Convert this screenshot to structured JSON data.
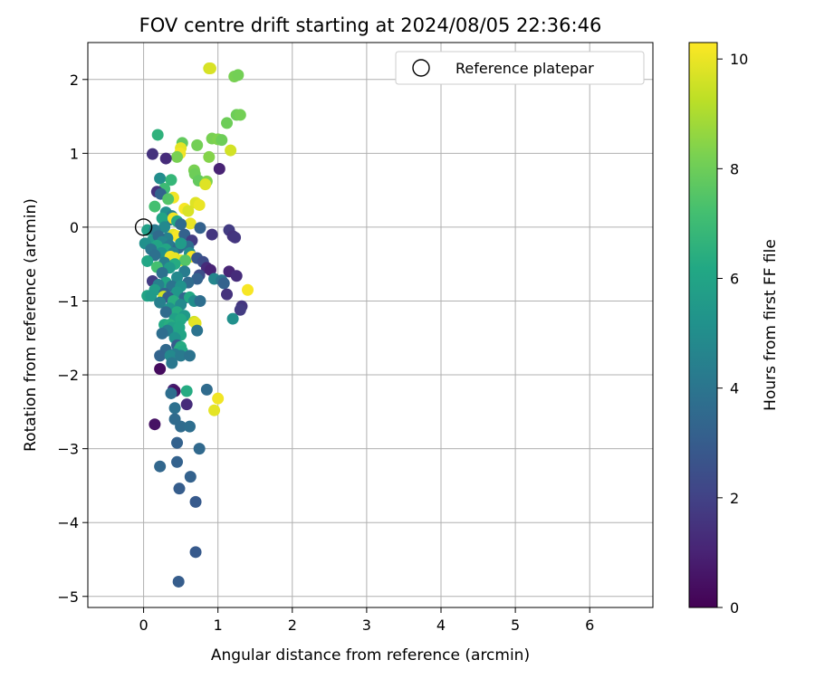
{
  "chart_data": {
    "type": "scatter",
    "title": "FOV centre drift starting at 2024/08/05 22:36:46",
    "xlabel": "Angular distance from reference (arcmin)",
    "ylabel": "Rotation from reference (arcmin)",
    "xlim": [
      -0.75,
      6.85
    ],
    "ylim": [
      -5.15,
      2.5
    ],
    "xticks": [
      0,
      1,
      2,
      3,
      4,
      5,
      6
    ],
    "yticks": [
      2,
      1,
      0,
      -1,
      -2,
      -3,
      -4,
      -5
    ],
    "grid": true,
    "legend": {
      "position": "top-right",
      "label": "Reference platepar"
    },
    "reference": {
      "x": 0,
      "y": 0
    },
    "colorbar": {
      "label": "Hours from first FF file",
      "colormap": "viridis",
      "range": [
        0,
        10.3
      ],
      "ticks": [
        0,
        2,
        4,
        6,
        8,
        10
      ]
    },
    "points": [
      {
        "x": 0.88,
        "y": 2.15,
        "c": 9.6
      },
      {
        "x": 0.9,
        "y": 2.15,
        "c": 9.7
      },
      {
        "x": 1.22,
        "y": 2.04,
        "c": 8.2
      },
      {
        "x": 1.27,
        "y": 2.06,
        "c": 8.1
      },
      {
        "x": 1.25,
        "y": 1.52,
        "c": 8.0
      },
      {
        "x": 1.3,
        "y": 1.52,
        "c": 8.1
      },
      {
        "x": 1.12,
        "y": 1.41,
        "c": 8.0
      },
      {
        "x": 0.19,
        "y": 1.25,
        "c": 6.6
      },
      {
        "x": 0.92,
        "y": 1.2,
        "c": 8.2
      },
      {
        "x": 1.0,
        "y": 1.19,
        "c": 8.3
      },
      {
        "x": 1.05,
        "y": 1.18,
        "c": 8.0
      },
      {
        "x": 0.52,
        "y": 1.14,
        "c": 7.8
      },
      {
        "x": 0.72,
        "y": 1.11,
        "c": 8.1
      },
      {
        "x": 0.5,
        "y": 1.07,
        "c": 9.9
      },
      {
        "x": 1.17,
        "y": 1.04,
        "c": 9.6
      },
      {
        "x": 0.12,
        "y": 0.99,
        "c": 1.5
      },
      {
        "x": 0.49,
        "y": 1.0,
        "c": 10.1
      },
      {
        "x": 0.45,
        "y": 0.95,
        "c": 8.2
      },
      {
        "x": 0.88,
        "y": 0.95,
        "c": 8.4
      },
      {
        "x": 0.3,
        "y": 0.93,
        "c": 1.3
      },
      {
        "x": 1.02,
        "y": 0.79,
        "c": 1.0
      },
      {
        "x": 0.68,
        "y": 0.77,
        "c": 8.2
      },
      {
        "x": 0.69,
        "y": 0.72,
        "c": 8.0
      },
      {
        "x": 0.22,
        "y": 0.66,
        "c": 5.0
      },
      {
        "x": 0.37,
        "y": 0.64,
        "c": 6.8
      },
      {
        "x": 0.74,
        "y": 0.63,
        "c": 7.8
      },
      {
        "x": 0.85,
        "y": 0.62,
        "c": 8.3
      },
      {
        "x": 0.83,
        "y": 0.58,
        "c": 9.8
      },
      {
        "x": 0.28,
        "y": 0.52,
        "c": 7.0
      },
      {
        "x": 0.18,
        "y": 0.48,
        "c": 1.5
      },
      {
        "x": 0.23,
        "y": 0.45,
        "c": 3.3
      },
      {
        "x": 0.4,
        "y": 0.4,
        "c": 10.1
      },
      {
        "x": 0.33,
        "y": 0.38,
        "c": 7.5
      },
      {
        "x": 0.7,
        "y": 0.33,
        "c": 9.8
      },
      {
        "x": 0.75,
        "y": 0.3,
        "c": 10.0
      },
      {
        "x": 0.15,
        "y": 0.28,
        "c": 7.2
      },
      {
        "x": 0.55,
        "y": 0.25,
        "c": 10.2
      },
      {
        "x": 0.6,
        "y": 0.22,
        "c": 9.7
      },
      {
        "x": 0.3,
        "y": 0.2,
        "c": 5.1
      },
      {
        "x": 0.38,
        "y": 0.15,
        "c": 4.5
      },
      {
        "x": 0.35,
        "y": 0.1,
        "c": 3.9
      },
      {
        "x": 0.25,
        "y": 0.12,
        "c": 6.0
      },
      {
        "x": 0.4,
        "y": 0.12,
        "c": 10.1
      },
      {
        "x": 0.45,
        "y": 0.08,
        "c": 6.2
      },
      {
        "x": 0.63,
        "y": 0.05,
        "c": 10.0
      },
      {
        "x": 0.5,
        "y": 0.04,
        "c": 3.6
      },
      {
        "x": 0.28,
        "y": 0.0,
        "c": 4.8
      },
      {
        "x": 0.76,
        "y": -0.01,
        "c": 3.2
      },
      {
        "x": 0.05,
        "y": -0.04,
        "c": 5.8
      },
      {
        "x": 0.15,
        "y": -0.04,
        "c": 4.2
      },
      {
        "x": 1.15,
        "y": -0.04,
        "c": 1.8
      },
      {
        "x": 1.2,
        "y": -0.12,
        "c": 1.5
      },
      {
        "x": 1.23,
        "y": -0.14,
        "c": 1.6
      },
      {
        "x": 0.92,
        "y": -0.1,
        "c": 1.6
      },
      {
        "x": 0.4,
        "y": -0.1,
        "c": 9.9
      },
      {
        "x": 0.45,
        "y": -0.12,
        "c": 10.2
      },
      {
        "x": 0.55,
        "y": -0.1,
        "c": 3.2
      },
      {
        "x": 0.32,
        "y": -0.15,
        "c": 4.5
      },
      {
        "x": 0.12,
        "y": -0.18,
        "c": 5.5
      },
      {
        "x": 0.2,
        "y": -0.12,
        "c": 3.6
      },
      {
        "x": 0.25,
        "y": -0.2,
        "c": 4.7
      },
      {
        "x": 0.65,
        "y": -0.18,
        "c": 1.8
      },
      {
        "x": 0.02,
        "y": -0.22,
        "c": 5.1
      },
      {
        "x": 0.18,
        "y": -0.25,
        "c": 6.0
      },
      {
        "x": 0.35,
        "y": -0.25,
        "c": 4.2
      },
      {
        "x": 0.47,
        "y": -0.28,
        "c": 3.5
      },
      {
        "x": 0.6,
        "y": -0.26,
        "c": 3.7
      },
      {
        "x": 0.5,
        "y": -0.22,
        "c": 5.6
      },
      {
        "x": 0.3,
        "y": -0.3,
        "c": 6.1
      },
      {
        "x": 0.1,
        "y": -0.3,
        "c": 4.0
      },
      {
        "x": 0.24,
        "y": -0.35,
        "c": 5.2
      },
      {
        "x": 0.4,
        "y": -0.35,
        "c": 4.6
      },
      {
        "x": 0.62,
        "y": -0.35,
        "c": 5.0
      },
      {
        "x": 0.15,
        "y": -0.38,
        "c": 3.8
      },
      {
        "x": 0.36,
        "y": -0.4,
        "c": 10.1
      },
      {
        "x": 0.42,
        "y": -0.42,
        "c": 10.0
      },
      {
        "x": 0.65,
        "y": -0.4,
        "c": 10.2
      },
      {
        "x": 0.5,
        "y": -0.45,
        "c": 9.9
      },
      {
        "x": 0.56,
        "y": -0.45,
        "c": 7.5
      },
      {
        "x": 0.72,
        "y": -0.42,
        "c": 2.8
      },
      {
        "x": 0.05,
        "y": -0.46,
        "c": 6.1
      },
      {
        "x": 0.28,
        "y": -0.48,
        "c": 4.4
      },
      {
        "x": 0.8,
        "y": -0.47,
        "c": 2.4
      },
      {
        "x": 0.42,
        "y": -0.5,
        "c": 6.3
      },
      {
        "x": 0.18,
        "y": -0.54,
        "c": 7.2
      },
      {
        "x": 0.35,
        "y": -0.55,
        "c": 5.5
      },
      {
        "x": 0.85,
        "y": -0.55,
        "c": 1.3
      },
      {
        "x": 0.9,
        "y": -0.58,
        "c": 1.0
      },
      {
        "x": 0.55,
        "y": -0.6,
        "c": 4.3
      },
      {
        "x": 1.15,
        "y": -0.6,
        "c": 1.1
      },
      {
        "x": 0.25,
        "y": -0.62,
        "c": 3.8
      },
      {
        "x": 1.25,
        "y": -0.66,
        "c": 1.3
      },
      {
        "x": 0.45,
        "y": -0.68,
        "c": 4.8
      },
      {
        "x": 0.75,
        "y": -0.65,
        "c": 2.4
      },
      {
        "x": 0.72,
        "y": -0.7,
        "c": 3.2
      },
      {
        "x": 0.95,
        "y": -0.7,
        "c": 4.7
      },
      {
        "x": 1.05,
        "y": -0.72,
        "c": 4.0
      },
      {
        "x": 0.12,
        "y": -0.73,
        "c": 1.8
      },
      {
        "x": 0.3,
        "y": -0.75,
        "c": 6.0
      },
      {
        "x": 0.6,
        "y": -0.75,
        "c": 3.6
      },
      {
        "x": 1.08,
        "y": -0.76,
        "c": 3.2
      },
      {
        "x": 0.2,
        "y": -0.78,
        "c": 4.5
      },
      {
        "x": 0.38,
        "y": -0.8,
        "c": 3.9
      },
      {
        "x": 0.5,
        "y": -0.8,
        "c": 5.2
      },
      {
        "x": 1.4,
        "y": -0.85,
        "c": 10.2
      },
      {
        "x": 0.15,
        "y": -0.85,
        "c": 5.7
      },
      {
        "x": 0.45,
        "y": -0.88,
        "c": 5.4
      },
      {
        "x": 0.28,
        "y": -0.9,
        "c": 3.3
      },
      {
        "x": 1.12,
        "y": -0.91,
        "c": 1.5
      },
      {
        "x": 0.05,
        "y": -0.93,
        "c": 6.0
      },
      {
        "x": 0.1,
        "y": -0.93,
        "c": 5.6
      },
      {
        "x": 0.27,
        "y": -0.94,
        "c": 9.6
      },
      {
        "x": 0.33,
        "y": -0.95,
        "c": 3.0
      },
      {
        "x": 0.55,
        "y": -0.96,
        "c": 3.4
      },
      {
        "x": 0.62,
        "y": -0.95,
        "c": 6.2
      },
      {
        "x": 0.4,
        "y": -1.0,
        "c": 6.4
      },
      {
        "x": 0.68,
        "y": -1.0,
        "c": 5.0
      },
      {
        "x": 0.76,
        "y": -1.0,
        "c": 3.7
      },
      {
        "x": 0.22,
        "y": -1.02,
        "c": 4.4
      },
      {
        "x": 0.5,
        "y": -1.05,
        "c": 4.8
      },
      {
        "x": 1.32,
        "y": -1.07,
        "c": 1.6
      },
      {
        "x": 1.3,
        "y": -1.12,
        "c": 1.8
      },
      {
        "x": 0.35,
        "y": -1.1,
        "c": 5.3
      },
      {
        "x": 0.45,
        "y": -1.15,
        "c": 6.3
      },
      {
        "x": 0.3,
        "y": -1.15,
        "c": 3.6
      },
      {
        "x": 0.55,
        "y": -1.2,
        "c": 5.5
      },
      {
        "x": 1.2,
        "y": -1.24,
        "c": 5.1
      },
      {
        "x": 0.42,
        "y": -1.24,
        "c": 5.8
      },
      {
        "x": 0.5,
        "y": -1.25,
        "c": 6.2
      },
      {
        "x": 0.68,
        "y": -1.28,
        "c": 9.6
      },
      {
        "x": 0.7,
        "y": -1.3,
        "c": 9.9
      },
      {
        "x": 0.28,
        "y": -1.32,
        "c": 6.2
      },
      {
        "x": 0.35,
        "y": -1.32,
        "c": 6.4
      },
      {
        "x": 0.38,
        "y": -1.36,
        "c": 5.8
      },
      {
        "x": 0.48,
        "y": -1.36,
        "c": 6.1
      },
      {
        "x": 0.32,
        "y": -1.4,
        "c": 4.3
      },
      {
        "x": 0.72,
        "y": -1.4,
        "c": 3.9
      },
      {
        "x": 0.25,
        "y": -1.44,
        "c": 3.7
      },
      {
        "x": 0.5,
        "y": -1.46,
        "c": 6.0
      },
      {
        "x": 0.42,
        "y": -1.5,
        "c": 5.2
      },
      {
        "x": 0.45,
        "y": -1.6,
        "c": 3.0
      },
      {
        "x": 0.5,
        "y": -1.62,
        "c": 6.3
      },
      {
        "x": 0.3,
        "y": -1.66,
        "c": 3.5
      },
      {
        "x": 0.48,
        "y": -1.66,
        "c": 6.4
      },
      {
        "x": 0.52,
        "y": -1.68,
        "c": 6.2
      },
      {
        "x": 0.42,
        "y": -1.72,
        "c": 4.3
      },
      {
        "x": 0.22,
        "y": -1.74,
        "c": 3.3
      },
      {
        "x": 0.36,
        "y": -1.74,
        "c": 4.8
      },
      {
        "x": 0.5,
        "y": -1.74,
        "c": 4.2
      },
      {
        "x": 0.62,
        "y": -1.74,
        "c": 3.9
      },
      {
        "x": 0.38,
        "y": -1.84,
        "c": 4.1
      },
      {
        "x": 0.22,
        "y": -1.92,
        "c": 0.3
      },
      {
        "x": 0.4,
        "y": -2.2,
        "c": 1.0
      },
      {
        "x": 0.42,
        "y": -2.22,
        "c": 0.5
      },
      {
        "x": 0.58,
        "y": -2.22,
        "c": 6.3
      },
      {
        "x": 0.85,
        "y": -2.2,
        "c": 3.6
      },
      {
        "x": 0.37,
        "y": -2.25,
        "c": 3.7
      },
      {
        "x": 1.0,
        "y": -2.32,
        "c": 10.1
      },
      {
        "x": 0.58,
        "y": -2.4,
        "c": 1.3
      },
      {
        "x": 0.42,
        "y": -2.45,
        "c": 3.8
      },
      {
        "x": 0.95,
        "y": -2.48,
        "c": 9.9
      },
      {
        "x": 0.42,
        "y": -2.6,
        "c": 3.6
      },
      {
        "x": 0.15,
        "y": -2.67,
        "c": 0.5
      },
      {
        "x": 0.5,
        "y": -2.7,
        "c": 3.6
      },
      {
        "x": 0.62,
        "y": -2.7,
        "c": 3.7
      },
      {
        "x": 0.45,
        "y": -2.92,
        "c": 3.2
      },
      {
        "x": 0.75,
        "y": -3.0,
        "c": 3.5
      },
      {
        "x": 0.45,
        "y": -3.18,
        "c": 3.2
      },
      {
        "x": 0.22,
        "y": -3.24,
        "c": 3.4
      },
      {
        "x": 0.63,
        "y": -3.38,
        "c": 3.2
      },
      {
        "x": 0.48,
        "y": -3.54,
        "c": 3.0
      },
      {
        "x": 0.7,
        "y": -3.72,
        "c": 2.9
      },
      {
        "x": 0.7,
        "y": -4.4,
        "c": 2.9
      },
      {
        "x": 0.47,
        "y": -4.8,
        "c": 3.0
      }
    ]
  }
}
